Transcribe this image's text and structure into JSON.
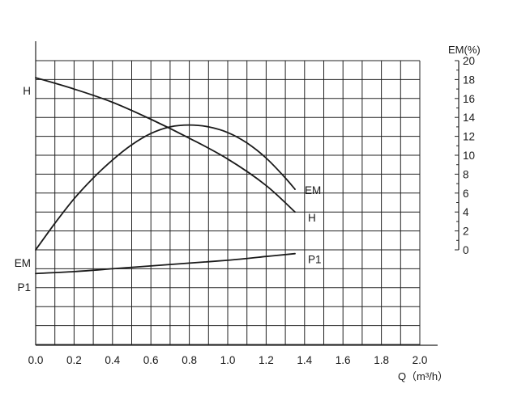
{
  "chart_data": {
    "type": "line",
    "title": "",
    "x": {
      "label": "Q（m³/h）",
      "min": 0.0,
      "max": 2.0,
      "tick_labels": [
        "0.0",
        "0.2",
        "0.4",
        "0.6",
        "0.8",
        "1.0",
        "1.2",
        "1.4",
        "1.6",
        "1.8",
        "2.0"
      ]
    },
    "right_axis": {
      "label": "EM(%)",
      "min": 0,
      "max": 20,
      "tick_labels": [
        "20",
        "18",
        "16",
        "14",
        "12",
        "10",
        "8",
        "6",
        "4",
        "2",
        "0"
      ]
    },
    "left_axis_marks": {
      "H": "H",
      "EM": "EM",
      "P1": "P1"
    },
    "grid": true,
    "series": [
      {
        "name": "H",
        "x": [
          0.0,
          0.2,
          0.4,
          0.6,
          0.8,
          1.0,
          1.2,
          1.35
        ],
        "y": [
          18.2,
          17.0,
          15.6,
          13.8,
          11.8,
          9.6,
          6.8,
          4.0
        ]
      },
      {
        "name": "EM",
        "x": [
          0.0,
          0.1,
          0.2,
          0.3,
          0.4,
          0.5,
          0.6,
          0.7,
          0.8,
          0.9,
          1.0,
          1.1,
          1.2,
          1.3,
          1.35
        ],
        "y": [
          0.0,
          2.8,
          5.4,
          7.6,
          9.5,
          11.1,
          12.3,
          13.0,
          13.2,
          13.0,
          12.4,
          11.3,
          9.7,
          7.6,
          6.4
        ]
      },
      {
        "name": "P1",
        "x": [
          0.0,
          0.2,
          0.4,
          0.6,
          0.8,
          1.0,
          1.2,
          1.35
        ],
        "y": [
          -2.5,
          -2.3,
          -2.0,
          -1.7,
          -1.4,
          -1.1,
          -0.7,
          -0.4
        ]
      }
    ]
  }
}
